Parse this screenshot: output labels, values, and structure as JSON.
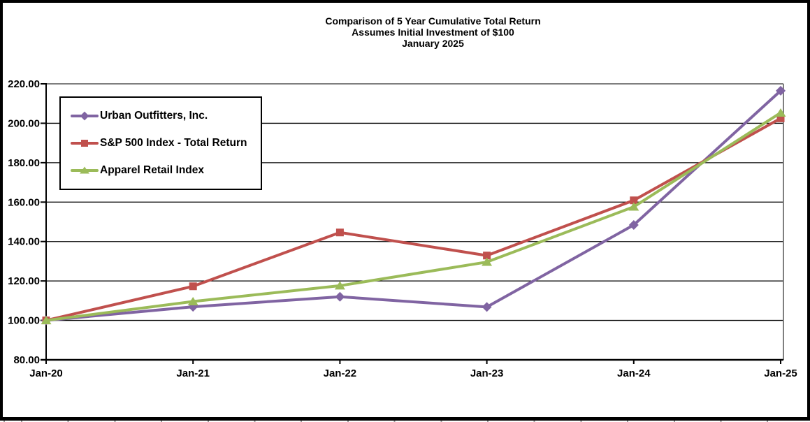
{
  "chart_data": {
    "type": "line",
    "title_lines": [
      "Comparison of 5 Year Cumulative Total Return",
      "Assumes Initial Investment of $100",
      "January 2025"
    ],
    "x_categories": [
      "Jan-20",
      "Jan-21",
      "Jan-22",
      "Jan-23",
      "Jan-24",
      "Jan-25"
    ],
    "ylim": [
      80,
      220
    ],
    "yticks": [
      80,
      100,
      120,
      140,
      160,
      180,
      200,
      220
    ],
    "ytick_labels": [
      "80.00",
      "100.00",
      "120.00",
      "140.00",
      "160.00",
      "180.00",
      "200.00",
      "220.00"
    ],
    "grid": "horizontal-black",
    "legend_position": "upper-left-inside",
    "plot_border_color": "#7f7f7f",
    "series": [
      {
        "name": "Urban Outfitters, Inc.",
        "color": "#8064A2",
        "marker": "diamond",
        "values": [
          100.0,
          106.9,
          112.0,
          106.8,
          148.4,
          216.5
        ]
      },
      {
        "name": "S&P 500 Index - Total Return",
        "color": "#C0504D",
        "marker": "square",
        "values": [
          100.0,
          117.3,
          144.6,
          132.9,
          160.9,
          202.5
        ]
      },
      {
        "name": "Apparel Retail Index",
        "color": "#9BBB59",
        "marker": "triangle",
        "values": [
          100.0,
          109.6,
          117.6,
          129.6,
          157.6,
          205.3
        ]
      }
    ]
  }
}
